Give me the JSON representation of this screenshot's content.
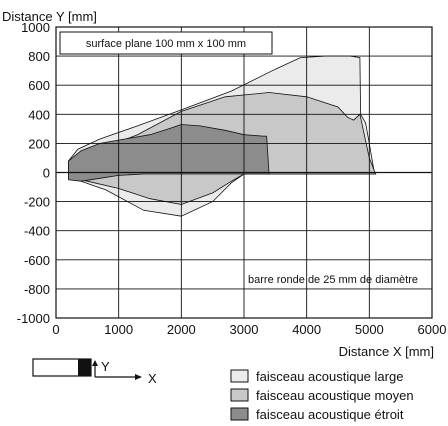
{
  "chart_data": {
    "type": "area",
    "ylabel": "Distance Y [mm]",
    "xlabel": "Distance X [mm]",
    "xlim": [
      0,
      6000
    ],
    "ylim": [
      -1000,
      1000
    ],
    "x_ticks": [
      0,
      1000,
      2000,
      3000,
      4000,
      5000,
      6000
    ],
    "y_ticks": [
      -1000,
      -800,
      -600,
      -400,
      -200,
      0,
      200,
      400,
      600,
      800,
      1000
    ],
    "x_tick_labels": [
      "0",
      "1000",
      "2000",
      "3000",
      "4000",
      "5000",
      "6000"
    ],
    "y_tick_labels": [
      "-1000",
      "-800",
      "-600",
      "-400",
      "-200",
      "0",
      "200",
      "400",
      "600",
      "800",
      "1000"
    ],
    "grid": true,
    "legend_position": "bottom-right",
    "annotations": {
      "surface": "surface plane 100 mm x 100 mm",
      "rod": "barre ronde de 25 mm de diamètre"
    },
    "series": [
      {
        "name": "faisceau acoustique large",
        "color": "#ebebeb",
        "outline": [
          [
            200,
            80
          ],
          [
            350,
            160
          ],
          [
            700,
            230
          ],
          [
            1300,
            320
          ],
          [
            2000,
            430
          ],
          [
            2800,
            560
          ],
          [
            3500,
            710
          ],
          [
            3900,
            790
          ],
          [
            4300,
            800
          ],
          [
            4700,
            800
          ],
          [
            4850,
            790
          ],
          [
            4860,
            400
          ],
          [
            4940,
            340
          ],
          [
            5000,
            200
          ],
          [
            5080,
            0
          ],
          [
            5100,
            -10
          ],
          [
            3000,
            -10
          ],
          [
            2800,
            -70
          ],
          [
            2500,
            -200
          ],
          [
            2000,
            -300
          ],
          [
            1400,
            -260
          ],
          [
            800,
            -120
          ],
          [
            400,
            -60
          ],
          [
            200,
            -40
          ]
        ]
      },
      {
        "name": "faisceau acoustique moyen",
        "color": "#c8c8c8",
        "outline": [
          [
            200,
            60
          ],
          [
            700,
            160
          ],
          [
            1300,
            260
          ],
          [
            2000,
            420
          ],
          [
            2700,
            520
          ],
          [
            3400,
            550
          ],
          [
            4000,
            520
          ],
          [
            4500,
            450
          ],
          [
            4650,
            380
          ],
          [
            4750,
            360
          ],
          [
            4850,
            400
          ],
          [
            5000,
            100
          ],
          [
            5100,
            -10
          ],
          [
            3000,
            -10
          ],
          [
            2800,
            -60
          ],
          [
            2500,
            -140
          ],
          [
            2000,
            -220
          ],
          [
            1500,
            -180
          ],
          [
            1000,
            -110
          ],
          [
            500,
            -60
          ],
          [
            200,
            -30
          ]
        ]
      },
      {
        "name": "faisceau acoustique étroit",
        "color": "#8c8c8c",
        "outline": [
          [
            200,
            80
          ],
          [
            400,
            150
          ],
          [
            700,
            200
          ],
          [
            1100,
            230
          ],
          [
            1500,
            260
          ],
          [
            1800,
            300
          ],
          [
            2000,
            330
          ],
          [
            2300,
            320
          ],
          [
            2700,
            290
          ],
          [
            3000,
            260
          ],
          [
            3300,
            250
          ],
          [
            3360,
            250
          ],
          [
            3400,
            -10
          ],
          [
            1400,
            -10
          ],
          [
            1000,
            -20
          ],
          [
            700,
            -40
          ],
          [
            400,
            -60
          ],
          [
            200,
            -50
          ]
        ]
      }
    ]
  },
  "diagram": {
    "y_label": "Y",
    "x_label": "X"
  }
}
